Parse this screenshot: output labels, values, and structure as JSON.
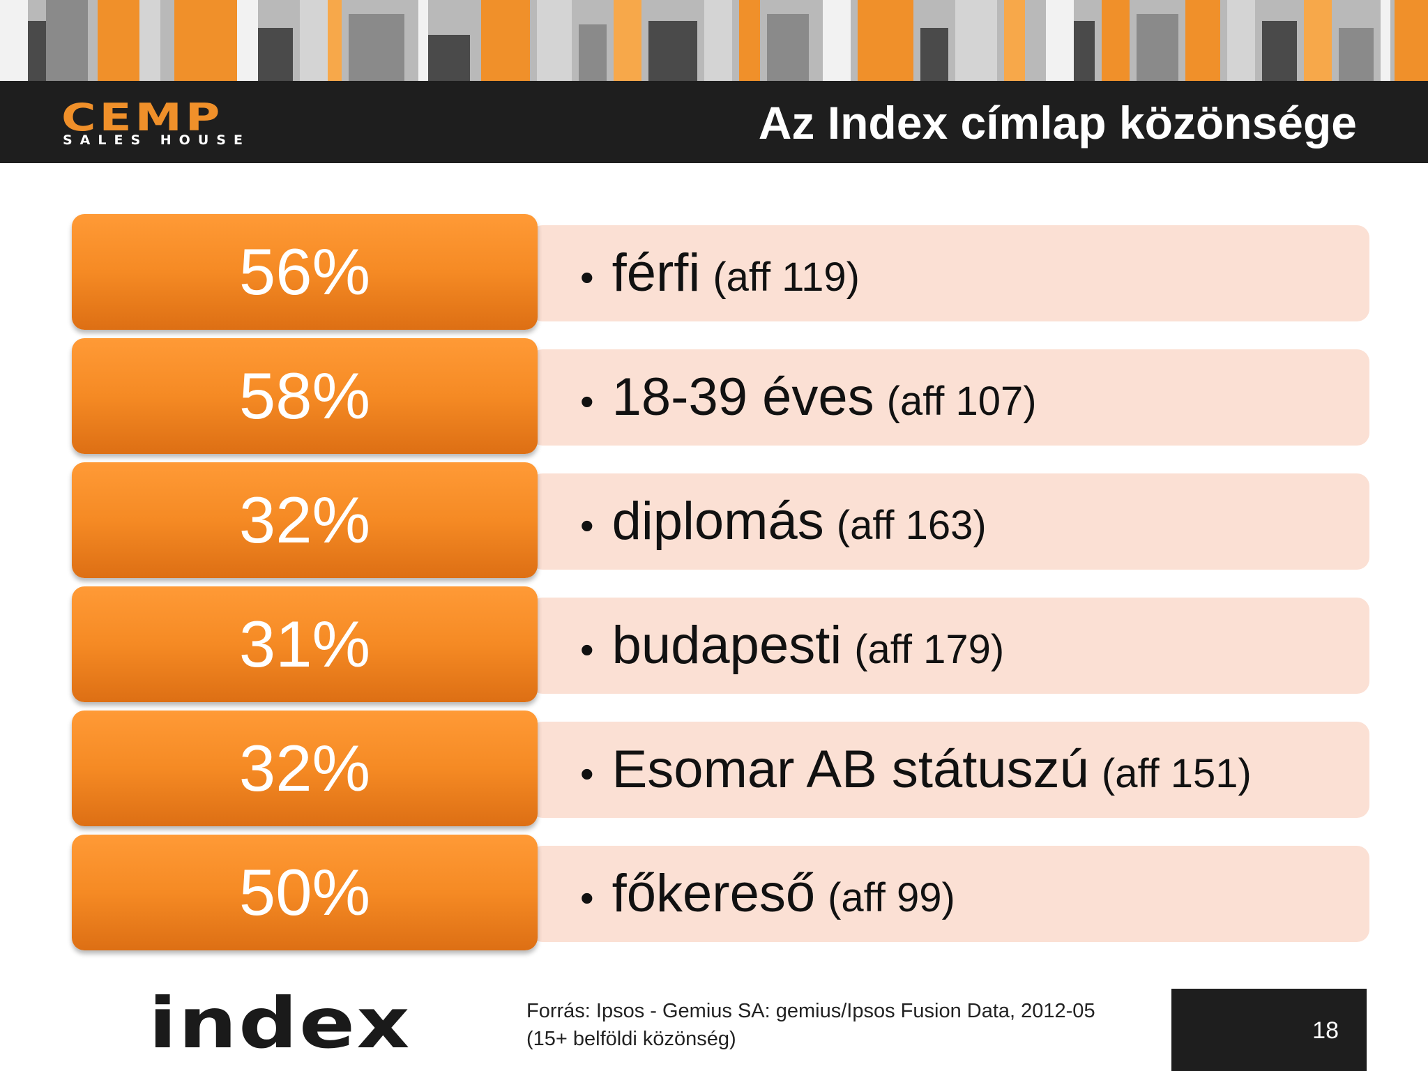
{
  "header": {
    "logo_word": "CEMP",
    "logo_tagline": "SALES HOUSE",
    "title": "Az Index címlap közönsége"
  },
  "rows": [
    {
      "percent": "56%",
      "label": "férfi",
      "affinity": "(aff 119)"
    },
    {
      "percent": "58%",
      "label": "18-39 éves",
      "affinity": "(aff 107)"
    },
    {
      "percent": "32%",
      "label": "diplomás",
      "affinity": "(aff 163)"
    },
    {
      "percent": "31%",
      "label": "budapesti",
      "affinity": "(aff 179)"
    },
    {
      "percent": "32%",
      "label": "Esomar AB státuszú",
      "affinity": "(aff 151)"
    },
    {
      "percent": "50%",
      "label": "főkereső",
      "affinity": "(aff 99)"
    }
  ],
  "footer": {
    "logo_word": "index",
    "source_line1": "Forrás: Ipsos - Gemius SA: gemius/Ipsos Fusion Data, 2012-05",
    "source_line2": "(15+ belföldi közönség)",
    "page_number": "18"
  },
  "colors": {
    "accent_orange": "#f58a24",
    "panel_pink": "#fbe0d4",
    "header_dark": "#1e1e1e"
  }
}
